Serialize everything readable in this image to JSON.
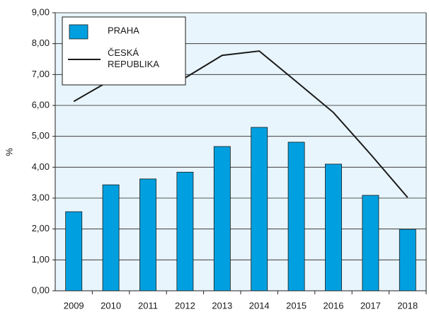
{
  "chart_data": {
    "type": "bar",
    "y_label": "%",
    "categories": [
      "2009",
      "2010",
      "2011",
      "2012",
      "2013",
      "2014",
      "2015",
      "2016",
      "2017",
      "2018"
    ],
    "series": [
      {
        "name": "PRAHA",
        "type": "bar",
        "color": "#00a0e0",
        "values": [
          2.56,
          3.43,
          3.62,
          3.84,
          4.67,
          5.29,
          4.81,
          4.1,
          3.09,
          1.99
        ]
      },
      {
        "name": "ČESKÁ REPUBLIKA",
        "type": "line",
        "color": "#1a1a1a",
        "values": [
          6.13,
          6.82,
          6.7,
          6.89,
          7.62,
          7.76,
          6.77,
          5.77,
          4.42,
          3.02
        ]
      }
    ],
    "ylim": [
      0,
      9
    ],
    "yticks": [
      {
        "value": 0,
        "label": "0,00"
      },
      {
        "value": 1,
        "label": "1,00"
      },
      {
        "value": 2,
        "label": "2,00"
      },
      {
        "value": 3,
        "label": "3,00"
      },
      {
        "value": 4,
        "label": "4,00"
      },
      {
        "value": 5,
        "label": "5,00"
      },
      {
        "value": 6,
        "label": "6,00"
      },
      {
        "value": 7,
        "label": "7,00"
      },
      {
        "value": 8,
        "label": "8,00"
      },
      {
        "value": 9,
        "label": "9,00"
      }
    ],
    "grid": true
  }
}
